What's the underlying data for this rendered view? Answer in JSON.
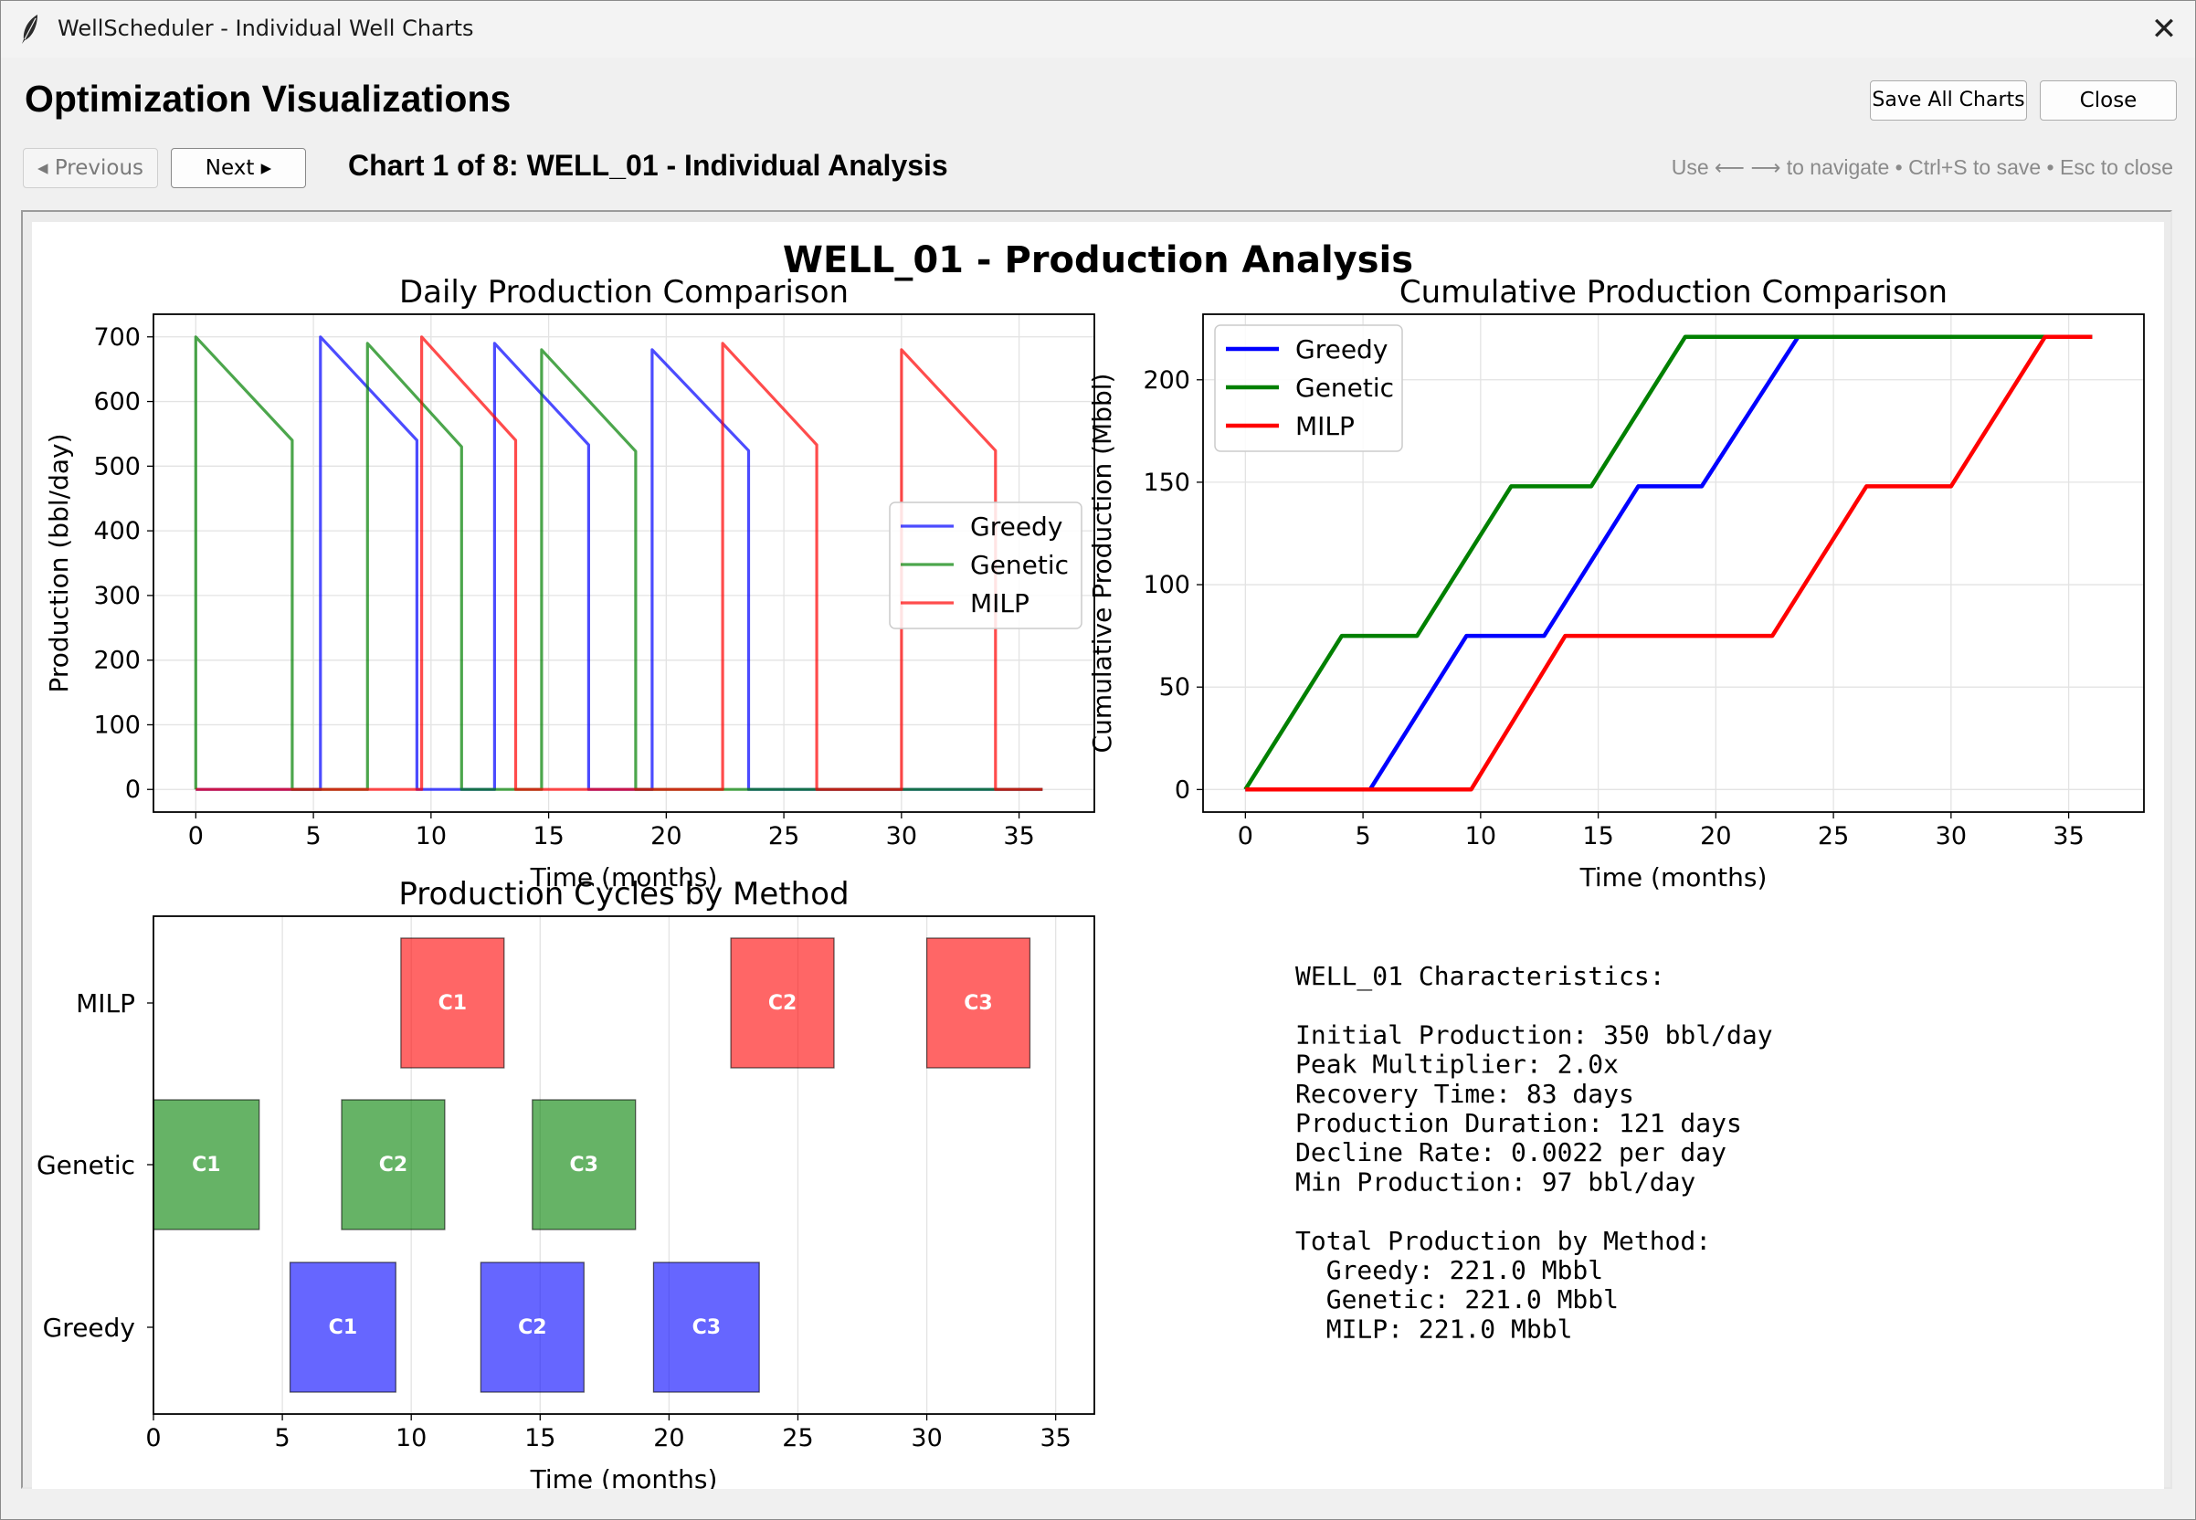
{
  "window": {
    "title": "WellScheduler - Individual Well Charts",
    "close_glyph": "✕"
  },
  "header": {
    "heading": "Optimization Visualizations",
    "save_label": "Save All Charts",
    "close_label": "Close"
  },
  "nav": {
    "prev_label": "◂ Previous",
    "next_label": "Next ▸",
    "chart_title": "Chart 1 of 8: WELL_01 - Individual Analysis",
    "hint": "Use ⟵ ⟶ to navigate • Ctrl+S to save • Esc to close"
  },
  "colors": {
    "Greedy": "#0000ff",
    "Genetic": "#008000",
    "MILP": "#ff0000"
  },
  "figure": {
    "suptitle": "WELL_01 - Production Analysis"
  },
  "chart_data": [
    {
      "type": "line",
      "title": "Daily Production Comparison",
      "xlabel": "Time (months)",
      "ylabel": "Production (bbl/day)",
      "xlim": [
        -1.8,
        38.2
      ],
      "ylim": [
        -35,
        735
      ],
      "xticks": [
        "0",
        "5",
        "10",
        "15",
        "20",
        "25",
        "30",
        "35"
      ],
      "yticks": [
        "0",
        "100",
        "200",
        "300",
        "400",
        "500",
        "600",
        "700"
      ],
      "grid": true,
      "legend": "center-right",
      "series": [
        {
          "name": "Greedy",
          "cycles": [
            [
              5.3,
              9.4,
              700,
              540
            ],
            [
              12.7,
              16.7,
              690,
              533
            ],
            [
              19.4,
              23.5,
              680,
              524
            ]
          ]
        },
        {
          "name": "Genetic",
          "cycles": [
            [
              0.0,
              4.1,
              700,
              540
            ],
            [
              7.3,
              11.3,
              690,
              530
            ],
            [
              14.7,
              18.7,
              680,
              523
            ]
          ]
        },
        {
          "name": "MILP",
          "cycles": [
            [
              9.6,
              13.6,
              700,
              540
            ],
            [
              22.4,
              26.4,
              690,
              533
            ],
            [
              30.0,
              34.0,
              680,
              524
            ]
          ]
        }
      ]
    },
    {
      "type": "line",
      "title": "Cumulative Production Comparison",
      "xlabel": "Time (months)",
      "ylabel": "Cumulative Production (Mbbl)",
      "xlim": [
        -1.8,
        38.2
      ],
      "ylim": [
        -11,
        232
      ],
      "xticks": [
        "0",
        "5",
        "10",
        "15",
        "20",
        "25",
        "30",
        "35"
      ],
      "yticks": [
        "0",
        "50",
        "100",
        "150",
        "200"
      ],
      "grid": true,
      "legend": "top-left",
      "series": [
        {
          "name": "Greedy",
          "x": [
            0,
            5.3,
            9.4,
            12.7,
            16.7,
            19.4,
            23.5,
            36
          ],
          "y": [
            0,
            0,
            75,
            75,
            148,
            148,
            221,
            221
          ]
        },
        {
          "name": "Genetic",
          "x": [
            0,
            4.1,
            7.3,
            11.3,
            14.7,
            18.7,
            36
          ],
          "y": [
            0,
            75,
            75,
            148,
            148,
            221,
            221
          ]
        },
        {
          "name": "MILP",
          "x": [
            0,
            9.6,
            13.6,
            22.4,
            26.4,
            30.0,
            34.0,
            36
          ],
          "y": [
            0,
            0,
            75,
            75,
            148,
            148,
            221,
            221
          ]
        }
      ]
    },
    {
      "type": "bar",
      "orientation": "horizontal",
      "title": "Production Cycles by Method",
      "xlabel": "Time (months)",
      "xlim": [
        0,
        36.5
      ],
      "xticks": [
        "0",
        "5",
        "10",
        "15",
        "20",
        "25",
        "30",
        "35"
      ],
      "categories": [
        "MILP",
        "Genetic",
        "Greedy"
      ],
      "grid": true,
      "bars": [
        {
          "method": "MILP",
          "label": "C1",
          "start": 9.6,
          "end": 13.6
        },
        {
          "method": "MILP",
          "label": "C2",
          "start": 22.4,
          "end": 26.4
        },
        {
          "method": "MILP",
          "label": "C3",
          "start": 30.0,
          "end": 34.0
        },
        {
          "method": "Genetic",
          "label": "C1",
          "start": 0.0,
          "end": 4.1
        },
        {
          "method": "Genetic",
          "label": "C2",
          "start": 7.3,
          "end": 11.3
        },
        {
          "method": "Genetic",
          "label": "C3",
          "start": 14.7,
          "end": 18.7
        },
        {
          "method": "Greedy",
          "label": "C1",
          "start": 5.3,
          "end": 9.4
        },
        {
          "method": "Greedy",
          "label": "C2",
          "start": 12.7,
          "end": 16.7
        },
        {
          "method": "Greedy",
          "label": "C3",
          "start": 19.4,
          "end": 23.5
        }
      ]
    }
  ],
  "info": {
    "lines": [
      "WELL_01 Characteristics:",
      "",
      "Initial Production: 350 bbl/day",
      "Peak Multiplier: 2.0x",
      "Recovery Time: 83 days",
      "Production Duration: 121 days",
      "Decline Rate: 0.0022 per day",
      "Min Production: 97 bbl/day",
      "",
      "Total Production by Method:",
      "  Greedy: 221.0 Mbbl",
      "  Genetic: 221.0 Mbbl",
      "  MILP: 221.0 Mbbl"
    ]
  }
}
